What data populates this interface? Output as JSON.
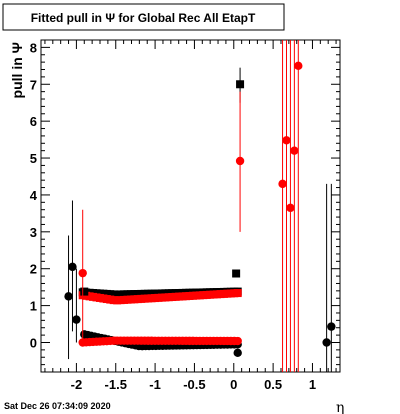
{
  "chart_data": {
    "type": "scatter",
    "title": "Fitted pull in Ψ  for Global Rec All EtapT",
    "xlabel": "η",
    "ylabel": "pull in  Ψ",
    "xlim": [
      -2.45,
      1.35
    ],
    "ylim": [
      -0.8,
      8.2
    ],
    "x_ticks": [
      "-2",
      "-1.5",
      "-1",
      "-0.5",
      "0",
      "0.5",
      "1"
    ],
    "y_ticks": [
      "0",
      "1",
      "2",
      "3",
      "4",
      "5",
      "6",
      "7",
      "8"
    ],
    "timestamp": "Sat Dec 26 07:34:09 2020",
    "colors": {
      "black": "#000000",
      "red": "#ff0000"
    },
    "series": [
      {
        "marker": "circle",
        "color": "#000000",
        "points": [
          {
            "x": -2.1,
            "y": 1.25,
            "lo": -0.45,
            "hi": 2.9
          },
          {
            "x": -2.05,
            "y": 2.05,
            "lo": 0.3,
            "hi": 3.85
          },
          {
            "x": -2.0,
            "y": 0.62,
            "lo": 0.0,
            "hi": 2.0
          },
          {
            "x": 0.05,
            "y": -0.28
          },
          {
            "x": 1.18,
            "y": 0.0,
            "lo": -4.0,
            "hi": 4.3
          },
          {
            "x": 1.24,
            "y": 0.43,
            "lo": -4.0,
            "hi": 4.3
          }
        ]
      },
      {
        "marker": "square",
        "color": "#000000",
        "points": [
          {
            "x": -1.9,
            "y": 1.38
          },
          {
            "x": 0.03,
            "y": 1.87
          },
          {
            "x": 0.08,
            "y": 7.0,
            "lo": 6.5,
            "hi": 7.45
          }
        ]
      },
      {
        "marker": "circle",
        "color": "#ff0000",
        "points": [
          {
            "x": -1.92,
            "y": 1.88,
            "lo": 0.0,
            "hi": 3.6
          },
          {
            "x": 0.08,
            "y": 4.92,
            "lo": 3.0,
            "hi": 6.8
          },
          {
            "x": 0.62,
            "y": 4.3,
            "lo": -4.0,
            "hi": 8.4
          },
          {
            "x": 0.67,
            "y": 5.48,
            "lo": -4.0,
            "hi": 8.4
          },
          {
            "x": 0.72,
            "y": 3.65,
            "lo": -4.0,
            "hi": 8.4
          },
          {
            "x": 0.77,
            "y": 5.2,
            "lo": -4.0,
            "hi": 8.4
          },
          {
            "x": 0.82,
            "y": 7.5,
            "lo": -4.0,
            "hi": 8.4
          }
        ]
      }
    ],
    "bands": [
      {
        "name": "black-upper",
        "color": "#000000",
        "marker": "square",
        "x_from": -1.92,
        "x_to": 0.05,
        "y_start": 1.36,
        "y_min": 1.3,
        "y_end": 1.38,
        "dip_x": -1.5
      },
      {
        "name": "red-upper",
        "color": "#ff0000",
        "marker": "square",
        "x_from": -1.92,
        "x_to": 0.05,
        "y_start": 1.28,
        "y_min": 1.14,
        "y_end": 1.34,
        "dip_x": -1.5
      },
      {
        "name": "black-lower",
        "color": "#000000",
        "marker": "circle",
        "x_from": -1.9,
        "x_to": 0.05,
        "y_start": 0.22,
        "y_min": -0.1,
        "y_end": -0.05,
        "dip_x": -1.2
      },
      {
        "name": "red-lower",
        "color": "#ff0000",
        "marker": "circle",
        "x_from": -1.92,
        "x_to": 0.05,
        "y_start": 0.0,
        "y_min": 0.05,
        "y_end": 0.04,
        "dip_x": -1.5
      }
    ]
  }
}
